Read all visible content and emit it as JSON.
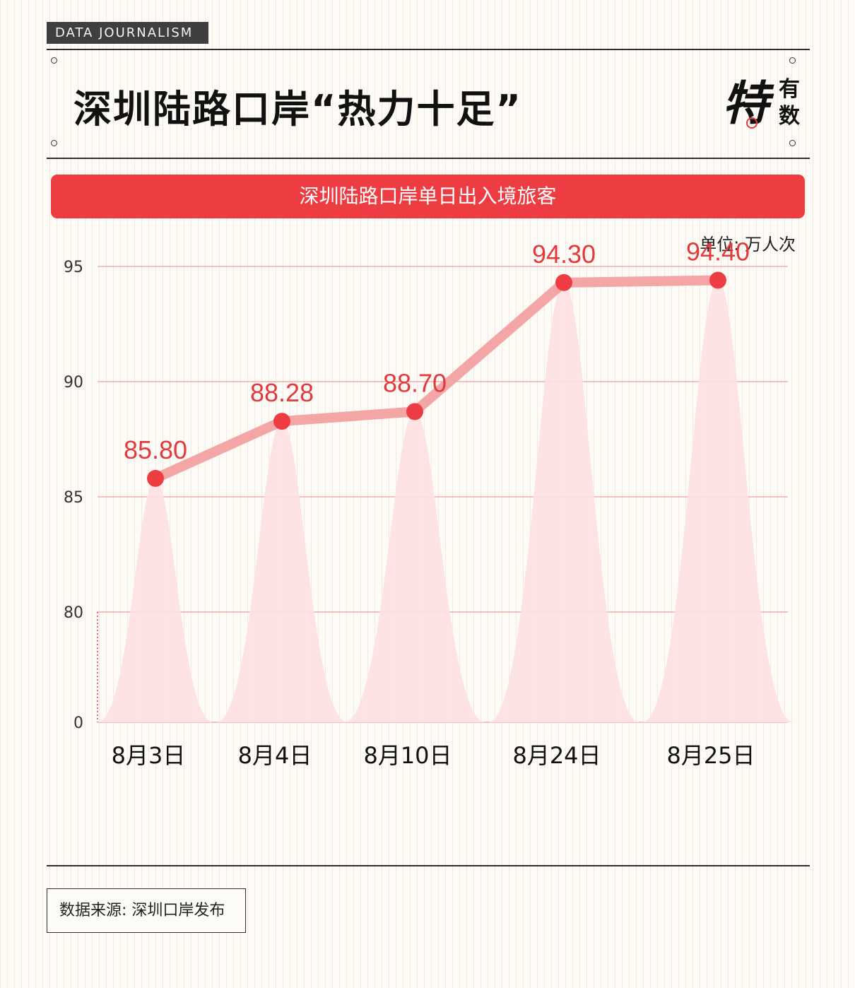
{
  "header": {
    "tag": "DATA JOURNALISM",
    "title": "深圳陆路口岸“热力十足”",
    "logo": {
      "big": "特",
      "small_top": "有",
      "small_bottom": "数"
    }
  },
  "banner": {
    "text": "深圳陆路口岸单日出入境旅客"
  },
  "unit_label": "单位: 万人次",
  "footer": {
    "source": "数据来源: 深圳口岸发布"
  },
  "colors": {
    "accent": "#ee3d42",
    "line": "#f4a6a6",
    "peak": "#fde1e1",
    "gridline": "#f08a8a",
    "value_label": "#e23a3e"
  },
  "chart_data": {
    "type": "line",
    "title": "深圳陆路口岸单日出入境旅客",
    "xlabel": "",
    "ylabel": "单位: 万人次",
    "categories": [
      "8月3日",
      "8月4日",
      "8月10日",
      "8月24日",
      "8月25日"
    ],
    "values": [
      85.8,
      88.28,
      88.7,
      94.3,
      94.4
    ],
    "value_labels": [
      "85.80",
      "88.28",
      "88.70",
      "94.30",
      "94.40"
    ],
    "y_ticks": [
      0,
      80,
      85,
      90,
      95
    ],
    "axis_break": {
      "from": 0,
      "to": 80
    },
    "ylim": [
      0,
      95
    ],
    "grid": true,
    "legend": "none"
  }
}
